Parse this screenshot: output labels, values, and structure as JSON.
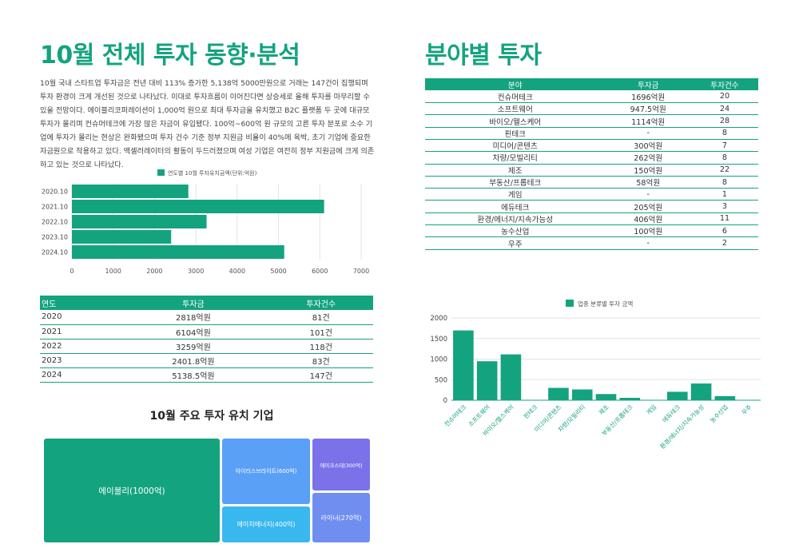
{
  "left": {
    "title": "10월 전체 투자 동향·분석",
    "intro": "10월 국내 스타트업 투자금은 전년 대비 113% 증가한 5,138억 5000만원으로 거래는 147건이 집행되며 투자 환경이 크게 개선된 것으로 나타났다. 이대로 투자흐름이 이어진다면 상승세로 올해 투자를 마무리할 수 있을 전망이다. 에이블리코퍼레이션이 1,000억 원으로 최대 투자금을 유치했고 B2C 플랫폼 두 곳에 대규모 투자가 몰리며 컨슈머테크에 가장 많은 자금이 유입됐다. 100억~600억 원 규모의 고른 투자 분포로 소수 기업에 투자가 몰리는 현상은 완화됐으며 투자 건수 기준 정부 지원금 비율이 40%에 육박, 초기 기업에 중요한 자금원으로 작용하고 있다. 액셀러레이터의 활동이 두드러졌으며 여성 기업은 여전히 정부 지원금에 크게 의존하고 있는 것으로 나타났다.",
    "year_table": {
      "headers": [
        "연도",
        "투자금",
        "투자건수"
      ],
      "rows": [
        [
          "2020",
          "2818억원",
          "81건"
        ],
        [
          "2021",
          "6104억원",
          "101건"
        ],
        [
          "2022",
          "3259억원",
          "118건"
        ],
        [
          "2023",
          "2401.8억원",
          "83건"
        ],
        [
          "2024",
          "5138.5억원",
          "147건"
        ]
      ]
    },
    "treemap_title": "10월 주요 투자 유치 기업",
    "treemap": [
      {
        "label": "에이블리(1000억)",
        "value": 1000,
        "color": "#14a37f"
      },
      {
        "label": "아이리스브라이트(600억)",
        "value": 600,
        "color": "#5aa0f7"
      },
      {
        "label": "에이치에너지(400억)",
        "value": 400,
        "color": "#39b8f0"
      },
      {
        "label": "에이크스테(300억)",
        "value": 300,
        "color": "#7b72e9"
      },
      {
        "label": "라이너(270억)",
        "value": 270,
        "color": "#6f8ef0"
      }
    ]
  },
  "right": {
    "title": "분야별 투자",
    "sector_table": {
      "headers": [
        "분야",
        "투자금",
        "투자건수"
      ],
      "rows": [
        [
          "컨슈머테크",
          "1696억원",
          "20"
        ],
        [
          "소프트웨어",
          "947.5억원",
          "24"
        ],
        [
          "바이오/헬스케어",
          "1114억원",
          "28"
        ],
        [
          "핀테크",
          "-",
          "8"
        ],
        [
          "미디어/콘텐츠",
          "300억원",
          "7"
        ],
        [
          "차량/모빌리티",
          "262억원",
          "8"
        ],
        [
          "제조",
          "150억원",
          "22"
        ],
        [
          "부동산/프롭테크",
          "58억원",
          "8"
        ],
        [
          "게임",
          "-",
          "1"
        ],
        [
          "에듀테크",
          "205억원",
          "3"
        ],
        [
          "환경/에너지/지속가능성",
          "406억원",
          "11"
        ],
        [
          "농수산업",
          "100억원",
          "6"
        ],
        [
          "우주",
          "-",
          "2"
        ]
      ]
    }
  },
  "chart_data": [
    {
      "type": "bar",
      "orientation": "horizontal",
      "legend": "연도별 10월 투자유치금액(단위:억원)",
      "legend_position": "top",
      "color": "#14a37f",
      "categories": [
        "2020.10",
        "2021.10",
        "2022.10",
        "2023.10",
        "2024.10"
      ],
      "values": [
        2818,
        6104,
        3259,
        2401.8,
        5138.5
      ],
      "xlim": [
        0,
        7000
      ],
      "xticks": [
        0,
        1000,
        2000,
        3000,
        4000,
        5000,
        6000,
        7000
      ],
      "grid": true
    },
    {
      "type": "bar",
      "legend": "업종 분류별 투자 금액",
      "legend_position": "top",
      "color": "#14a37f",
      "categories": [
        "컨슈머테크",
        "소프트웨어",
        "바이오/헬스케어",
        "핀테크",
        "미디어/콘텐츠",
        "차량/모빌리티",
        "제조",
        "부동산/프롭테크",
        "게임",
        "에듀테크",
        "환경/에너지/지속가능성",
        "농수산업",
        "우주"
      ],
      "values": [
        1696,
        947.5,
        1114,
        0,
        300,
        262,
        150,
        58,
        0,
        205,
        406,
        100,
        0
      ],
      "ylim": [
        0,
        2000
      ],
      "yticks": [
        0,
        500,
        1000,
        1500,
        2000
      ],
      "grid": true
    }
  ]
}
